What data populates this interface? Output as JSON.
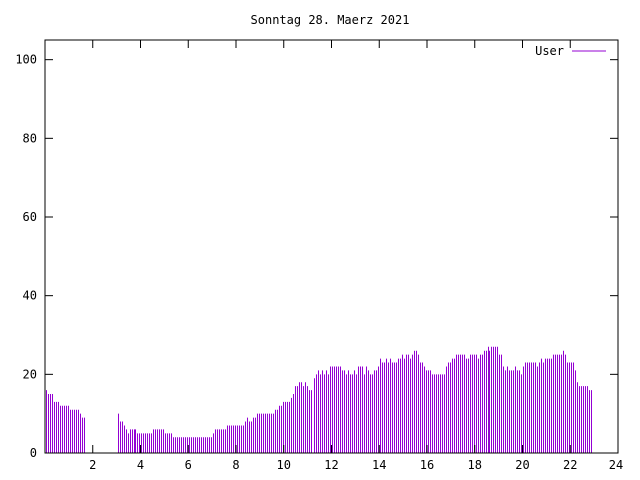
{
  "chart_data": {
    "type": "bar",
    "title": "Sonntag 28. Maerz 2021",
    "xlim": [
      0,
      24
    ],
    "ylim": [
      0,
      105
    ],
    "xticks": [
      2,
      4,
      6,
      8,
      10,
      12,
      14,
      16,
      18,
      20,
      22,
      24
    ],
    "yticks": [
      0,
      20,
      40,
      60,
      80,
      100
    ],
    "legend": {
      "position": "top-right"
    },
    "grid": false,
    "series": [
      {
        "name": "User",
        "color": "#9400d3",
        "step_hours": 0.0833,
        "values": [
          16,
          15,
          15,
          15,
          13,
          13,
          13,
          12,
          12,
          12,
          12,
          12,
          11,
          11,
          11,
          11,
          11,
          10,
          9,
          9,
          0,
          0,
          0,
          0,
          0,
          0,
          0,
          0,
          0,
          0,
          0,
          0,
          0,
          0,
          0,
          0,
          10,
          8,
          8,
          7,
          6,
          5,
          6,
          6,
          6,
          6,
          5,
          5,
          5,
          5,
          5,
          5,
          5,
          5,
          6,
          6,
          6,
          6,
          6,
          6,
          5,
          5,
          5,
          5,
          4,
          4,
          4,
          4,
          4,
          4,
          4,
          4,
          4,
          4,
          4,
          4,
          4,
          4,
          4,
          4,
          4,
          4,
          4,
          4,
          5,
          6,
          6,
          6,
          6,
          6,
          6,
          7,
          7,
          7,
          7,
          7,
          7,
          7,
          7,
          7,
          8,
          9,
          8,
          8,
          9,
          9,
          10,
          10,
          10,
          10,
          10,
          10,
          10,
          10,
          10,
          11,
          11,
          12,
          12,
          13,
          13,
          13,
          13,
          14,
          15,
          17,
          17,
          18,
          18,
          17,
          18,
          17,
          16,
          16,
          0,
          19,
          20,
          21,
          20,
          21,
          20,
          21,
          20,
          22,
          22,
          22,
          22,
          22,
          22,
          21,
          21,
          20,
          21,
          20,
          20,
          21,
          20,
          22,
          22,
          22,
          20,
          22,
          21,
          20,
          20,
          21,
          21,
          22,
          24,
          23,
          23,
          24,
          23,
          24,
          23,
          23,
          23,
          24,
          24,
          25,
          24,
          25,
          25,
          24,
          25,
          26,
          26,
          25,
          23,
          23,
          22,
          21,
          21,
          21,
          20,
          20,
          20,
          20,
          20,
          20,
          20,
          22,
          23,
          23,
          24,
          24,
          25,
          25,
          25,
          25,
          25,
          24,
          24,
          25,
          25,
          25,
          25,
          24,
          25,
          25,
          26,
          26,
          27,
          26,
          27,
          27,
          27,
          27,
          25,
          25,
          22,
          21,
          22,
          21,
          21,
          21,
          22,
          21,
          21,
          20,
          22,
          23,
          23,
          23,
          23,
          23,
          23,
          22,
          23,
          24,
          23,
          24,
          24,
          24,
          24,
          25,
          25,
          25,
          25,
          25,
          26,
          25,
          23,
          23,
          23,
          23,
          21,
          18,
          17,
          17,
          17,
          17,
          17,
          16,
          16
        ]
      }
    ]
  }
}
